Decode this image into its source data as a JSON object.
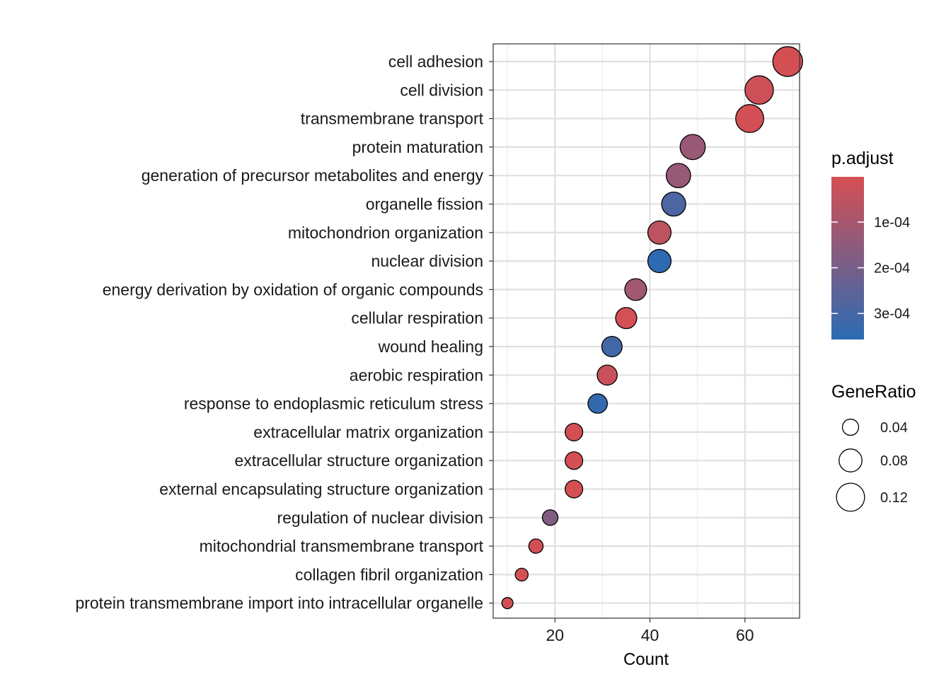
{
  "chart_data": {
    "type": "scatter",
    "title": "",
    "xlabel": "Count",
    "ylabel": "",
    "xlim": [
      7,
      71.5
    ],
    "xticks": [
      "20",
      "40",
      "60"
    ],
    "grid": true,
    "colorscale": {
      "low_color": "#d64f53",
      "high_color": "#2b6bb3"
    },
    "terms": [
      {
        "label": "cell adhesion",
        "count": 69,
        "gene_ratio": 0.135,
        "p_adjust": 5e-06
      },
      {
        "label": "cell division",
        "count": 63,
        "gene_ratio": 0.123,
        "p_adjust": 2e-05
      },
      {
        "label": "transmembrane transport",
        "count": 61,
        "gene_ratio": 0.119,
        "p_adjust": 1e-05
      },
      {
        "label": "protein maturation",
        "count": 49,
        "gene_ratio": 0.096,
        "p_adjust": 0.00013
      },
      {
        "label": "generation of precursor metabolites and energy",
        "count": 46,
        "gene_ratio": 0.09,
        "p_adjust": 0.00013
      },
      {
        "label": "organelle fission",
        "count": 45,
        "gene_ratio": 0.088,
        "p_adjust": 0.00029
      },
      {
        "label": "mitochondrion organization",
        "count": 42,
        "gene_ratio": 0.082,
        "p_adjust": 5e-05
      },
      {
        "label": "nuclear division",
        "count": 42,
        "gene_ratio": 0.082,
        "p_adjust": 0.00035
      },
      {
        "label": "energy derivation by oxidation of organic compounds",
        "count": 37,
        "gene_ratio": 0.072,
        "p_adjust": 0.00011
      },
      {
        "label": "cellular respiration",
        "count": 35,
        "gene_ratio": 0.068,
        "p_adjust": 8e-06
      },
      {
        "label": "wound healing",
        "count": 32,
        "gene_ratio": 0.063,
        "p_adjust": 0.00031
      },
      {
        "label": "aerobic respiration",
        "count": 31,
        "gene_ratio": 0.061,
        "p_adjust": 3e-05
      },
      {
        "label": "response to endoplasmic reticulum stress",
        "count": 29,
        "gene_ratio": 0.057,
        "p_adjust": 0.00034
      },
      {
        "label": "extracellular matrix organization",
        "count": 24,
        "gene_ratio": 0.047,
        "p_adjust": 5e-06
      },
      {
        "label": "extracellular structure organization",
        "count": 24,
        "gene_ratio": 0.047,
        "p_adjust": 5e-06
      },
      {
        "label": "external encapsulating structure organization",
        "count": 24,
        "gene_ratio": 0.047,
        "p_adjust": 5e-06
      },
      {
        "label": "regulation of nuclear division",
        "count": 19,
        "gene_ratio": 0.037,
        "p_adjust": 0.00018
      },
      {
        "label": "mitochondrial transmembrane transport",
        "count": 16,
        "gene_ratio": 0.031,
        "p_adjust": 1e-05
      },
      {
        "label": "collagen fibril organization",
        "count": 13,
        "gene_ratio": 0.025,
        "p_adjust": 8e-06
      },
      {
        "label": "protein transmembrane import into intracellular organelle",
        "count": 10,
        "gene_ratio": 0.019,
        "p_adjust": 1e-05
      }
    ],
    "legend_color": {
      "title": "p.adjust",
      "labels": [
        "1e-04",
        "2e-04",
        "3e-04"
      ],
      "values": [
        0.0001,
        0.0002,
        0.0003
      ],
      "range": [
        1e-06,
        0.000357
      ],
      "placement": "right"
    },
    "legend_size": {
      "title": "GeneRatio",
      "labels": [
        "0.04",
        "0.08",
        "0.12"
      ],
      "values": [
        0.04,
        0.08,
        0.12
      ],
      "placement": "right"
    }
  }
}
